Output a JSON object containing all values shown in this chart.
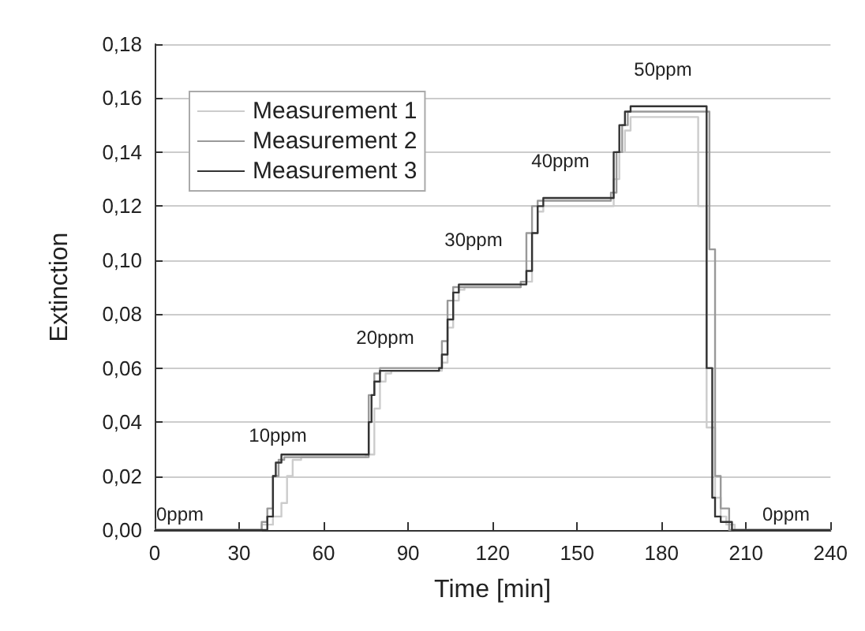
{
  "chart_data": {
    "type": "step",
    "xlabel": "Time [min]",
    "ylabel": "Extinction",
    "xlim": [
      0,
      240
    ],
    "xticks": [
      0,
      30,
      60,
      90,
      120,
      150,
      180,
      210,
      240
    ],
    "ylim": [
      0,
      0.18
    ],
    "yticks": [
      {
        "value": 0,
        "label": "0,00"
      },
      {
        "value": 0.02,
        "label": "0,02"
      },
      {
        "value": 0.04,
        "label": "0,04"
      },
      {
        "value": 0.06,
        "label": "0,06"
      },
      {
        "value": 0.08,
        "label": "0,08"
      },
      {
        "value": 0.1,
        "label": "0,10"
      },
      {
        "value": 0.12,
        "label": "0,12"
      },
      {
        "value": 0.14,
        "label": "0,14"
      },
      {
        "value": 0.16,
        "label": "0,16"
      },
      {
        "value": 0.18,
        "label": "0,18"
      }
    ],
    "grid": "y",
    "legend": "top left",
    "marker": "none",
    "line_style": "solid",
    "series": [
      {
        "name": "Measurement 1",
        "color": "#cccccc",
        "x": [
          0,
          38,
          42,
          45,
          47,
          49,
          52,
          75,
          78,
          80,
          82,
          84,
          102,
          104,
          106,
          108,
          110,
          130,
          134,
          136,
          138,
          163,
          165,
          167,
          169,
          193,
          196,
          199,
          201,
          203,
          206,
          240
        ],
        "values": [
          0,
          0.002,
          0.005,
          0.01,
          0.02,
          0.026,
          0.027,
          0.028,
          0.045,
          0.055,
          0.058,
          0.059,
          0.062,
          0.075,
          0.085,
          0.089,
          0.09,
          0.092,
          0.11,
          0.118,
          0.12,
          0.13,
          0.14,
          0.148,
          0.153,
          0.12,
          0.038,
          0.012,
          0.005,
          0.002,
          0,
          0
        ]
      },
      {
        "name": "Measurement 2",
        "color": "#999999",
        "x": [
          0,
          38,
          40,
          42,
          44,
          46,
          74,
          76,
          78,
          80,
          100,
          102,
          104,
          106,
          130,
          132,
          134,
          136,
          162,
          164,
          166,
          168,
          197,
          199,
          201,
          204,
          240
        ],
        "values": [
          0,
          0.003,
          0.008,
          0.02,
          0.026,
          0.027,
          0.027,
          0.05,
          0.058,
          0.06,
          0.06,
          0.07,
          0.085,
          0.09,
          0.092,
          0.11,
          0.12,
          0.122,
          0.125,
          0.14,
          0.15,
          0.155,
          0.104,
          0.02,
          0.008,
          0,
          0
        ]
      },
      {
        "name": "Measurement 3",
        "color": "#333333",
        "x": [
          0,
          40,
          42,
          43,
          45,
          76,
          77,
          78,
          80,
          101,
          102,
          104,
          106,
          108,
          132,
          134,
          136,
          138,
          163,
          165,
          167,
          169,
          196,
          198,
          199,
          201,
          205,
          240
        ],
        "values": [
          0,
          0.005,
          0.02,
          0.025,
          0.028,
          0.04,
          0.05,
          0.055,
          0.059,
          0.06,
          0.065,
          0.078,
          0.088,
          0.091,
          0.096,
          0.11,
          0.12,
          0.123,
          0.14,
          0.15,
          0.155,
          0.157,
          0.06,
          0.012,
          0.005,
          0.003,
          0,
          0
        ]
      }
    ],
    "annotations": [
      "0ppm",
      "10ppm",
      "20ppm",
      "30ppm",
      "40ppm",
      "50ppm",
      "0ppm"
    ]
  }
}
